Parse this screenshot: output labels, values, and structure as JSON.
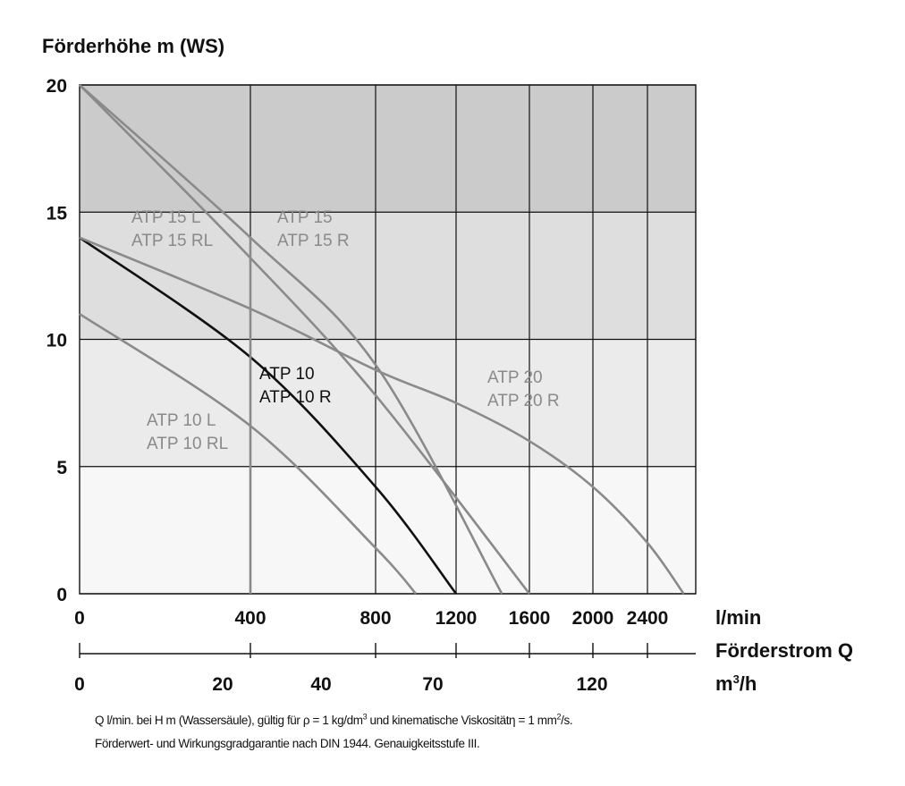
{
  "chart_data": {
    "type": "line",
    "title": "",
    "ylabel": "Förderhöhe m (WS)",
    "xlabel": "Förderstrom Q",
    "x_unit_primary": "l/min",
    "x_unit_secondary": "m³/h",
    "y_ticks": [
      "0",
      "5",
      "10",
      "15",
      "20"
    ],
    "ylim": [
      0,
      20
    ],
    "x_ticks_lmin": [
      "0",
      "400",
      "800",
      "1200",
      "1600",
      "2000",
      "2400"
    ],
    "x_ticks_m3h": [
      "0",
      "20",
      "40",
      "70",
      "120"
    ],
    "bands": [
      {
        "from": 0,
        "to": 5,
        "color": "#f7f7f7"
      },
      {
        "from": 5,
        "to": 10,
        "color": "#ebebeb"
      },
      {
        "from": 10,
        "to": 15,
        "color": "#dedede"
      },
      {
        "from": 15,
        "to": 20,
        "color": "#cbcbcb"
      }
    ],
    "series": [
      {
        "labels": [
          "ATP 10 L",
          "ATP 10 RL"
        ],
        "color": "#8a8a8a",
        "points": [
          [
            0,
            11
          ],
          [
            400,
            6.6
          ],
          [
            800,
            1.8
          ],
          [
            1000,
            0
          ]
        ]
      },
      {
        "labels": [
          "ATP 10",
          "ATP 10 R"
        ],
        "color": "#111111",
        "points": [
          [
            0,
            14
          ],
          [
            400,
            9.3
          ],
          [
            800,
            4.2
          ],
          [
            1200,
            0
          ]
        ]
      },
      {
        "labels": [
          "ATP 15 L",
          "ATP 15 RL"
        ],
        "color": "#8a8a8a",
        "points": [
          [
            0,
            20
          ],
          [
            400,
            13.2
          ],
          [
            800,
            7.8
          ],
          [
            1600,
            0
          ]
        ]
      },
      {
        "labels": [
          "ATP 15",
          "ATP 15 R"
        ],
        "color": "#8a8a8a",
        "points": [
          [
            0,
            20
          ],
          [
            400,
            14
          ],
          [
            800,
            9
          ],
          [
            1450,
            0
          ]
        ]
      },
      {
        "labels": [
          "ATP 20",
          "ATP 20 R"
        ],
        "color": "#8a8a8a",
        "points": [
          [
            0,
            14
          ],
          [
            400,
            11.2
          ],
          [
            800,
            8.8
          ],
          [
            1200,
            7.5
          ],
          [
            1600,
            6
          ],
          [
            2000,
            4.2
          ],
          [
            2400,
            2
          ],
          [
            2550,
            0
          ]
        ]
      },
      {
        "labels": [],
        "color": "#8a8a8a",
        "points": [
          [
            400,
            0
          ],
          [
            400,
            14
          ]
        ]
      }
    ]
  },
  "footnote": {
    "line1_a": "Q l/min. bei H m (Wassersäule), gültig für ρ = 1 kg/dm",
    "line1_sup1": "3",
    "line1_b": " und kinematische Viskositätη = 1 mm",
    "line1_sup2": "2",
    "line1_c": "/s.",
    "line2": "Förderwert- und Wirkungsgradgarantie nach DIN 1944. Genauigkeitsstufe III."
  }
}
